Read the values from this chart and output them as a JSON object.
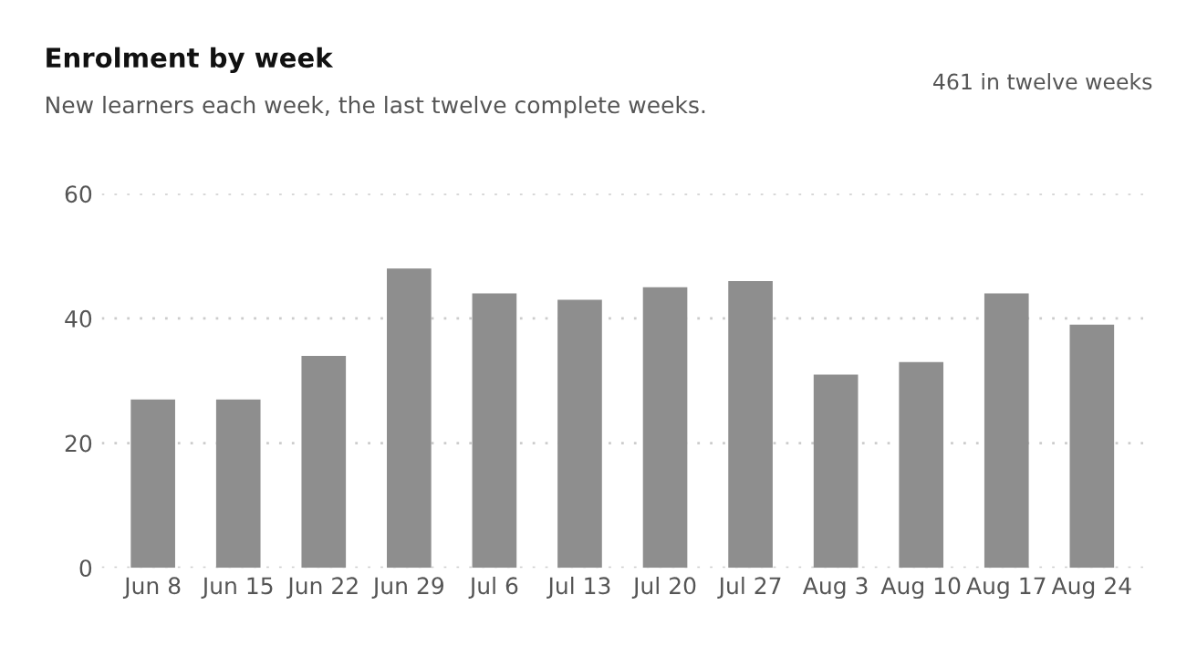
{
  "chart_data": {
    "type": "bar",
    "title": "Enrolment by week",
    "subtitle": "New learners each week, the last twelve complete weeks.",
    "annotations": [
      "461 in twelve weeks"
    ],
    "categories": [
      "Jun 8",
      "Jun 15",
      "Jun 22",
      "Jun 29",
      "Jul 6",
      "Jul 13",
      "Jul 20",
      "Jul 27",
      "Aug 3",
      "Aug 10",
      "Aug 17",
      "Aug 24"
    ],
    "values": [
      27,
      27,
      34,
      48,
      44,
      43,
      45,
      46,
      31,
      33,
      44,
      39
    ],
    "color": "#8e8e8e",
    "ylim": [
      0,
      60
    ],
    "yticks": [
      0,
      20,
      40,
      60
    ],
    "grid": "y"
  }
}
